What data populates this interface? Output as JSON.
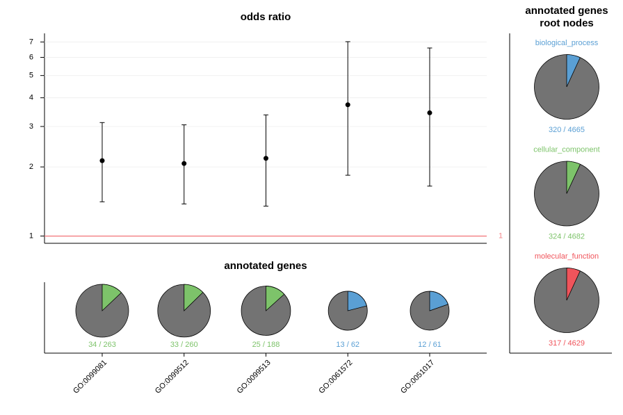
{
  "chart_data": [
    {
      "type": "errorbar",
      "title": "odds ratio",
      "ylog": true,
      "grid": true,
      "ylim": [
        0.93,
        7.63
      ],
      "yticks": [
        1,
        2,
        3,
        4,
        5,
        6,
        7
      ],
      "hline": 1,
      "hline_color": "#f4868a",
      "series": [
        {
          "color": "#000000",
          "values": [
            2.13,
            2.07,
            2.18,
            3.73,
            3.44
          ],
          "lower": [
            1.41,
            1.38,
            1.35,
            1.84,
            1.65
          ],
          "upper": [
            3.12,
            3.05,
            3.37,
            7.02,
            6.59
          ]
        }
      ]
    },
    {
      "type": "pie",
      "title": "annotated genes",
      "separator": "/",
      "categories": [
        "GO:0099081",
        "GO:0099512",
        "GO:0099513",
        "GO:0061572",
        "GO:0051017"
      ],
      "values": [
        34,
        33,
        25,
        13,
        12
      ],
      "totals": [
        263,
        260,
        188,
        62,
        61
      ],
      "colors": [
        "#7dc36a",
        "#7dc36a",
        "#7dc36a",
        "#5a9fd4",
        "#5a9fd4"
      ],
      "rest_color": "#737373"
    },
    {
      "type": "rootpie",
      "title_lines": [
        "annotated genes",
        "root nodes"
      ],
      "separator": "/",
      "names": [
        "biological_process",
        "cellular_component",
        "molecular_function"
      ],
      "values": [
        320,
        324,
        317
      ],
      "totals": [
        4665,
        4682,
        4629
      ],
      "colors": [
        "#5a9fd4",
        "#7dc36a",
        "#f0545b"
      ],
      "rest_color": "#737373"
    }
  ]
}
